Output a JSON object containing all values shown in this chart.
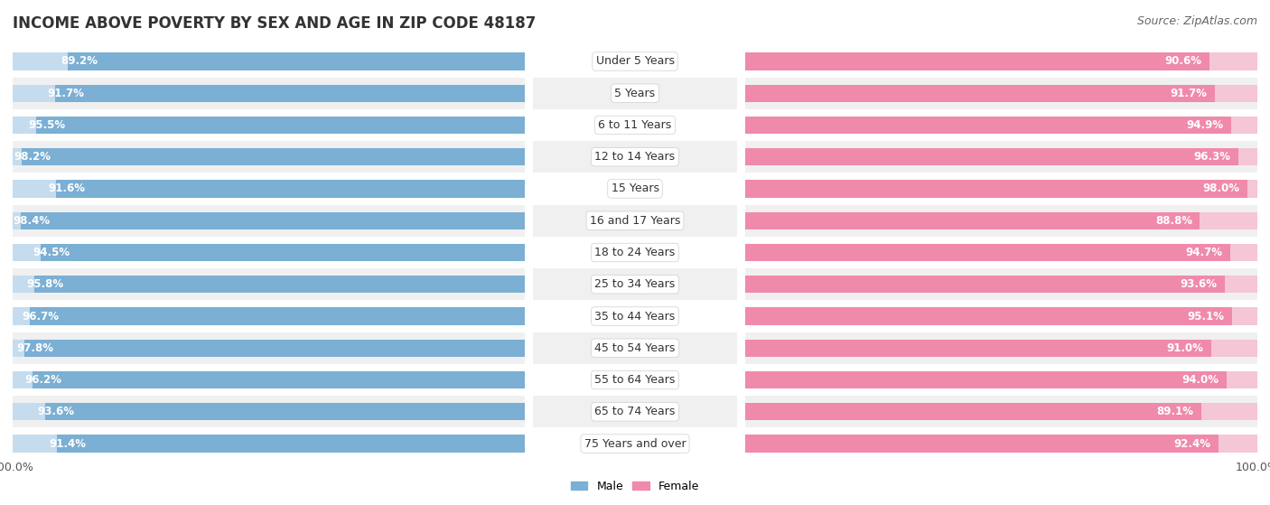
{
  "title": "INCOME ABOVE POVERTY BY SEX AND AGE IN ZIP CODE 48187",
  "source": "Source: ZipAtlas.com",
  "categories": [
    "Under 5 Years",
    "5 Years",
    "6 to 11 Years",
    "12 to 14 Years",
    "15 Years",
    "16 and 17 Years",
    "18 to 24 Years",
    "25 to 34 Years",
    "35 to 44 Years",
    "45 to 54 Years",
    "55 to 64 Years",
    "65 to 74 Years",
    "75 Years and over"
  ],
  "male_values": [
    89.2,
    91.7,
    95.5,
    98.2,
    91.6,
    98.4,
    94.5,
    95.8,
    96.7,
    97.8,
    96.2,
    93.6,
    91.4
  ],
  "female_values": [
    90.6,
    91.7,
    94.9,
    96.3,
    98.0,
    88.8,
    94.7,
    93.6,
    95.1,
    91.0,
    94.0,
    89.1,
    92.4
  ],
  "male_color": "#7bafd4",
  "male_track_color": "#c5dcee",
  "female_color": "#f08aaa",
  "female_track_color": "#f5c6d6",
  "male_label": "Male",
  "female_label": "Female",
  "background_color": "#ffffff",
  "row_alt_color": "#f0f0f0",
  "bar_height": 0.55,
  "title_fontsize": 12,
  "label_fontsize": 8.5,
  "cat_fontsize": 9,
  "tick_fontsize": 9,
  "source_fontsize": 9
}
